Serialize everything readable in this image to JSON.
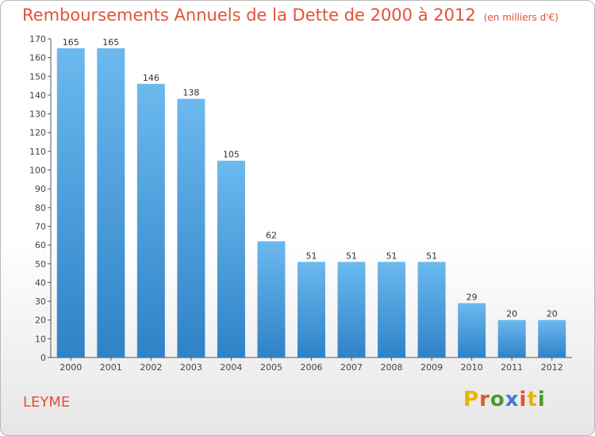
{
  "title": "Remboursements Annuels de la Dette de 2000 à 2012",
  "unit_label": "(en milliers d'€)",
  "commune": "LEYME",
  "logo": {
    "letters": [
      "P",
      "r",
      "o",
      "x",
      "i",
      "t",
      "i"
    ],
    "colors": [
      "#e8b400",
      "#e05a2a",
      "#4a9a2a",
      "#3a7fd0",
      "#e0533a",
      "#e8b400",
      "#4a9a2a"
    ]
  },
  "colors": {
    "bar_top": "#6cb9ef",
    "bar_bottom": "#2f82c7",
    "title": "#e0533a"
  },
  "chart_data": {
    "type": "bar",
    "title": "Remboursements Annuels de la Dette de 2000 à 2012",
    "categories": [
      "2000",
      "2001",
      "2002",
      "2003",
      "2004",
      "2005",
      "2006",
      "2007",
      "2008",
      "2009",
      "2010",
      "2011",
      "2012"
    ],
    "values": [
      165,
      165,
      146,
      138,
      105,
      62,
      51,
      51,
      51,
      51,
      29,
      20,
      20
    ],
    "ylim": [
      0,
      170
    ],
    "yticks": [
      0,
      10,
      20,
      30,
      40,
      50,
      60,
      70,
      80,
      90,
      100,
      110,
      120,
      130,
      140,
      150,
      160,
      170
    ],
    "grid": false
  }
}
